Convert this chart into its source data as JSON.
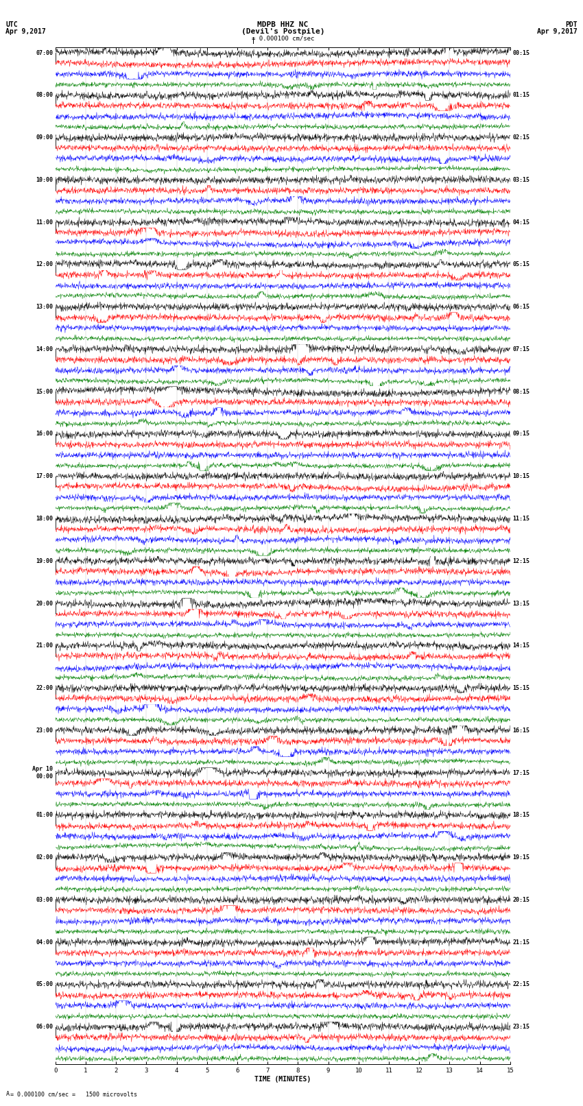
{
  "title_line1": "MDPB HHZ NC",
  "title_line2": "(Devil's Postpile)",
  "scale_label": "= 0.000100 cm/sec",
  "scale_annotation": "= 0.000100 cm/sec =   1500 microvolts",
  "utc_label": "UTC",
  "utc_date": "Apr 9,2017",
  "pdt_label": "PDT",
  "pdt_date": "Apr 9,2017",
  "xlabel": "TIME (MINUTES)",
  "figsize": [
    8.5,
    16.13
  ],
  "dpi": 100,
  "bg_color": "#ffffff",
  "colors": [
    "black",
    "red",
    "blue",
    "green"
  ],
  "utc_times": [
    "07:00",
    "08:00",
    "09:00",
    "10:00",
    "11:00",
    "12:00",
    "13:00",
    "14:00",
    "15:00",
    "16:00",
    "17:00",
    "18:00",
    "19:00",
    "20:00",
    "21:00",
    "22:00",
    "23:00",
    "Apr 10\n00:00",
    "01:00",
    "02:00",
    "03:00",
    "04:00",
    "05:00",
    "06:00"
  ],
  "pdt_times": [
    "00:15",
    "01:15",
    "02:15",
    "03:15",
    "04:15",
    "05:15",
    "06:15",
    "07:15",
    "08:15",
    "09:15",
    "10:15",
    "11:15",
    "12:15",
    "13:15",
    "14:15",
    "15:15",
    "16:15",
    "17:15",
    "18:15",
    "19:15",
    "20:15",
    "21:15",
    "22:15",
    "23:15"
  ],
  "n_hours": 24,
  "traces_per_hour": 4,
  "n_cols": 1500,
  "x_minutes": [
    0,
    1,
    2,
    3,
    4,
    5,
    6,
    7,
    8,
    9,
    10,
    11,
    12,
    13,
    14,
    15
  ],
  "amplitude_black": 0.42,
  "amplitude_red": 0.38,
  "amplitude_blue": 0.35,
  "amplitude_green": 0.28,
  "noise_base": 0.12,
  "seed": 42
}
